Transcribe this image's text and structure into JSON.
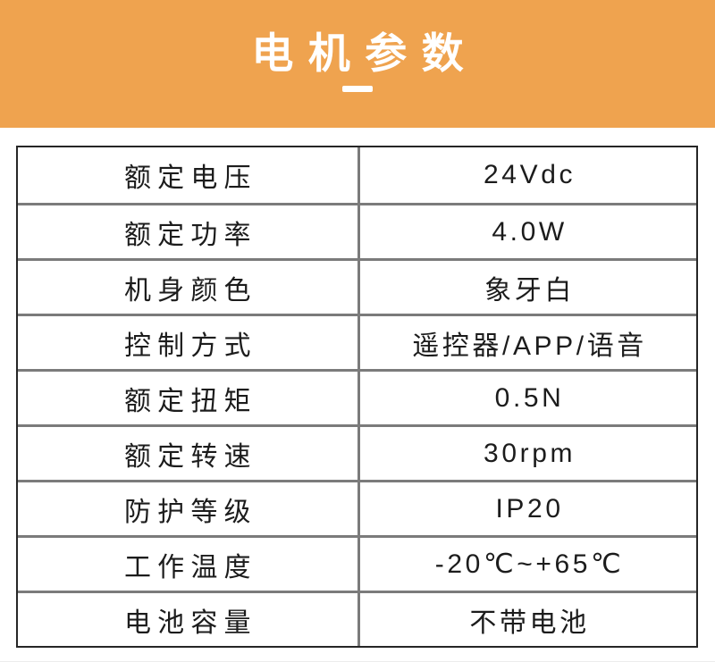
{
  "colors": {
    "orange": "#efa34f",
    "border_dark": "#262626",
    "grid_gray": "#7b7b7b",
    "text": "#1c1c1c"
  },
  "header": {
    "title": "电机参数"
  },
  "table": {
    "rows": [
      {
        "label": "额定电压",
        "value": "24Vdc"
      },
      {
        "label": "额定功率",
        "value": "4.0W"
      },
      {
        "label": "机身颜色",
        "value": "象牙白"
      },
      {
        "label": "控制方式",
        "value": "遥控器/APP/语音"
      },
      {
        "label": "额定扭矩",
        "value": "0.5N"
      },
      {
        "label": "额定转速",
        "value": "30rpm"
      },
      {
        "label": "防护等级",
        "value": "IP20"
      },
      {
        "label": "工作温度",
        "value": "-20℃~+65℃"
      },
      {
        "label": "电池容量",
        "value": "不带电池"
      }
    ]
  }
}
